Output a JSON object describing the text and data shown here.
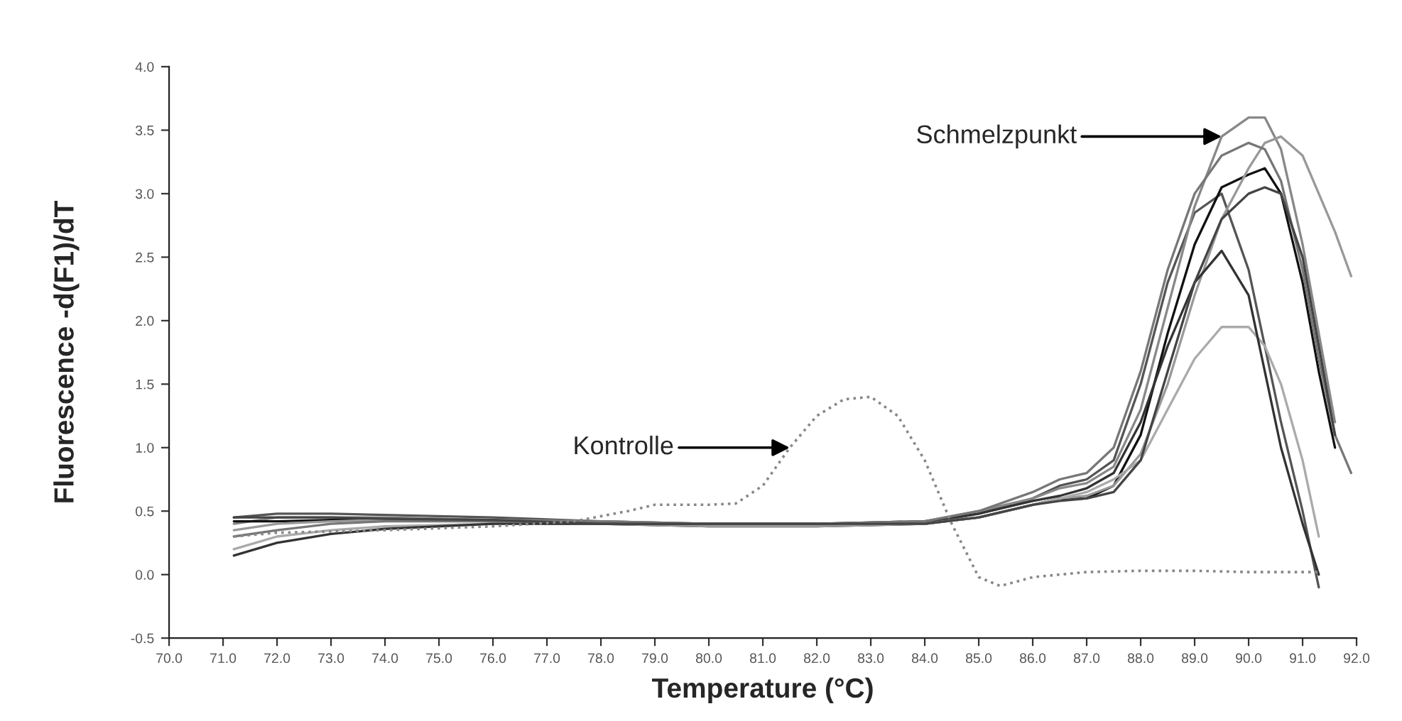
{
  "chart_data": {
    "type": "line",
    "xlabel": "Temperature (°C)",
    "ylabel": "Fluorescence -d(F1)/dT",
    "xlim": [
      70,
      92
    ],
    "ylim": [
      -0.5,
      4.0
    ],
    "xticks": [
      {
        "value": 70,
        "label": "70.0"
      },
      {
        "value": 71,
        "label": "71.0"
      },
      {
        "value": 72,
        "label": "72.0"
      },
      {
        "value": 73,
        "label": "73.0"
      },
      {
        "value": 74,
        "label": "74.0"
      },
      {
        "value": 75,
        "label": "75.0"
      },
      {
        "value": 76,
        "label": "76.0"
      },
      {
        "value": 77,
        "label": "77.0"
      },
      {
        "value": 78,
        "label": "78.0"
      },
      {
        "value": 79,
        "label": "79.0"
      },
      {
        "value": 80,
        "label": "80.0"
      },
      {
        "value": 81,
        "label": "81.0"
      },
      {
        "value": 82,
        "label": "82.0"
      },
      {
        "value": 83,
        "label": "83.0"
      },
      {
        "value": 84,
        "label": "84.0"
      },
      {
        "value": 85,
        "label": "85.0"
      },
      {
        "value": 86,
        "label": "86.0"
      },
      {
        "value": 87,
        "label": "87.0"
      },
      {
        "value": 88,
        "label": "88.0"
      },
      {
        "value": 89,
        "label": "89.0"
      },
      {
        "value": 90,
        "label": "90.0"
      },
      {
        "value": 91,
        "label": "91.0"
      },
      {
        "value": 92,
        "label": "92.0"
      }
    ],
    "yticks": [
      {
        "value": -0.5,
        "label": "-0.5"
      },
      {
        "value": 0,
        "label": "0.0"
      },
      {
        "value": 0.5,
        "label": "0.5"
      },
      {
        "value": 1,
        "label": "1.0"
      },
      {
        "value": 1.5,
        "label": "1.5"
      },
      {
        "value": 2,
        "label": "2.0"
      },
      {
        "value": 2.5,
        "label": "2.5"
      },
      {
        "value": 3,
        "label": "3.0"
      },
      {
        "value": 3.5,
        "label": "3.5"
      },
      {
        "value": 4,
        "label": "4.0"
      }
    ],
    "grid": false,
    "legend": false,
    "marker": "none",
    "x": [
      71.2,
      72,
      73,
      74,
      76,
      78,
      80,
      82,
      84,
      85,
      86,
      86.5,
      87,
      87.5,
      88,
      88.5,
      89,
      89.5,
      90,
      90.3,
      90.6,
      91,
      91.3,
      91.6,
      91.9
    ],
    "series": [
      {
        "color": "#555555",
        "line_style": "solid",
        "values": [
          0.45,
          0.48,
          0.48,
          0.47,
          0.45,
          0.42,
          0.4,
          0.4,
          0.4,
          0.48,
          0.6,
          0.7,
          0.75,
          0.9,
          1.5,
          2.3,
          2.85,
          3.0,
          2.4,
          1.8,
          1.2,
          0.5,
          -0.1,
          null,
          null
        ]
      },
      {
        "color": "#888888",
        "line_style": "solid",
        "values": [
          0.4,
          0.45,
          0.45,
          0.45,
          0.43,
          0.42,
          0.4,
          0.4,
          0.42,
          0.5,
          0.6,
          0.68,
          0.72,
          0.85,
          1.3,
          2.1,
          2.9,
          3.45,
          3.6,
          3.6,
          3.35,
          2.6,
          1.9,
          1.2,
          null
        ]
      },
      {
        "color": "#111111",
        "line_style": "solid",
        "values": [
          0.42,
          0.42,
          0.43,
          0.43,
          0.42,
          0.4,
          0.38,
          0.38,
          0.4,
          0.45,
          0.55,
          0.6,
          0.6,
          0.7,
          1.1,
          1.9,
          2.6,
          3.05,
          3.15,
          3.2,
          3.0,
          2.3,
          1.6,
          1.0,
          null
        ]
      },
      {
        "color": "#999999",
        "line_style": "solid",
        "values": [
          0.35,
          0.4,
          0.42,
          0.43,
          0.42,
          0.4,
          0.38,
          0.38,
          0.4,
          0.45,
          0.55,
          0.6,
          0.62,
          0.7,
          0.95,
          1.5,
          2.2,
          2.8,
          3.2,
          3.4,
          3.45,
          3.3,
          3.0,
          2.7,
          2.35
        ]
      },
      {
        "color": "#aaaaaa",
        "line_style": "solid",
        "values": [
          0.2,
          0.3,
          0.35,
          0.38,
          0.4,
          0.4,
          0.4,
          0.4,
          0.4,
          0.45,
          0.55,
          0.6,
          0.65,
          0.75,
          0.9,
          1.3,
          1.7,
          1.95,
          1.95,
          1.8,
          1.5,
          0.9,
          0.3,
          null,
          null
        ]
      },
      {
        "color": "#333333",
        "line_style": "solid",
        "values": [
          0.15,
          0.25,
          0.32,
          0.36,
          0.4,
          0.4,
          0.4,
          0.4,
          0.42,
          0.48,
          0.58,
          0.62,
          0.68,
          0.8,
          1.2,
          1.8,
          2.3,
          2.55,
          2.2,
          1.6,
          1.0,
          0.4,
          0.0,
          null,
          null
        ]
      },
      {
        "color": "#777777",
        "line_style": "solid",
        "values": [
          0.3,
          0.35,
          0.4,
          0.42,
          0.42,
          0.42,
          0.4,
          0.4,
          0.42,
          0.5,
          0.65,
          0.75,
          0.8,
          1.0,
          1.6,
          2.4,
          3.0,
          3.3,
          3.4,
          3.35,
          3.1,
          2.4,
          1.7,
          1.1,
          0.8
        ]
      },
      {
        "color": "#444444",
        "line_style": "solid",
        "values": [
          0.45,
          0.45,
          0.45,
          0.44,
          0.43,
          0.4,
          0.4,
          0.4,
          0.4,
          0.45,
          0.55,
          0.58,
          0.6,
          0.65,
          0.9,
          1.6,
          2.3,
          2.8,
          3.0,
          3.05,
          3.0,
          2.5,
          1.8,
          1.1,
          null
        ]
      },
      {
        "color": "#888888",
        "line_style": "dotted",
        "x": [
          71.2,
          72,
          74,
          76,
          77.5,
          78.5,
          79,
          80,
          80.5,
          81,
          81.5,
          82,
          82.5,
          83,
          83.5,
          84,
          84.5,
          85,
          85.4,
          86,
          87,
          88,
          89,
          90,
          91,
          91.3
        ],
        "values": [
          0.3,
          0.33,
          0.35,
          0.38,
          0.42,
          0.5,
          0.55,
          0.55,
          0.56,
          0.7,
          1.0,
          1.25,
          1.38,
          1.4,
          1.25,
          0.9,
          0.4,
          -0.02,
          -0.09,
          -0.02,
          0.02,
          0.03,
          0.03,
          0.02,
          0.02,
          0.02
        ]
      }
    ],
    "annotations": [
      {
        "text": "Kontrolle",
        "x": 81.5,
        "y": 1.0
      },
      {
        "text": "Schmelzpunkt",
        "x": 89.5,
        "y": 3.45
      }
    ]
  }
}
